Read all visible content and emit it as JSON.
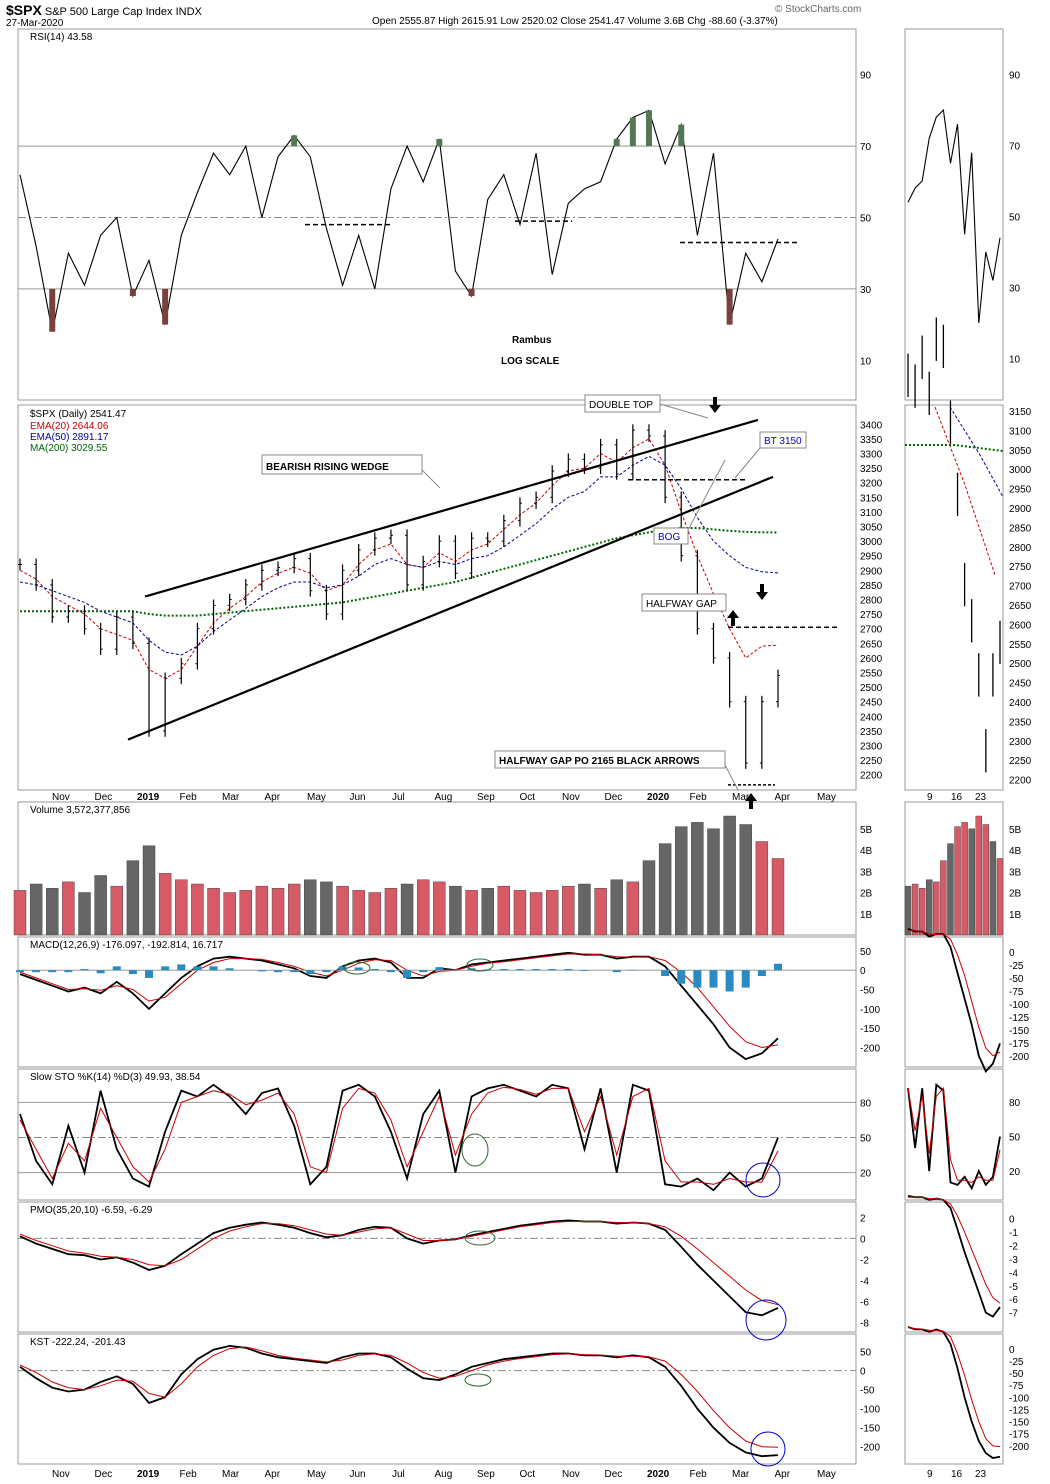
{
  "header": {
    "symbol": "$SPX",
    "name": "S&P 500 Large Cap Index",
    "exchange": "INDX",
    "date": "27-Mar-2020",
    "ohlc": "Open 2555.87  High 2615.91  Low 2520.02  Close 2541.47  Volume 3.6B  Chg -88.60 (-3.37%)",
    "watermark": "© StockCharts.com"
  },
  "chart_data": [
    {
      "type": "line",
      "title": "RSI(14) 43.58",
      "ylim": [
        0,
        100
      ],
      "yticks": [
        90,
        70,
        50,
        30,
        10
      ],
      "annotations": [
        "Rambus",
        "LOG SCALE"
      ],
      "series": [
        {
          "name": "RSI(14)",
          "values": [
            62,
            42,
            18,
            40,
            31,
            45,
            50,
            28,
            38,
            20,
            45,
            57,
            68,
            62,
            70,
            50,
            67,
            73,
            67,
            47,
            31,
            45,
            30,
            58,
            70,
            60,
            72,
            35,
            28,
            55,
            62,
            48,
            68,
            34,
            54,
            58,
            60,
            72,
            78,
            80,
            65,
            76,
            45,
            68,
            20,
            40,
            32,
            44
          ]
        }
      ]
    },
    {
      "type": "line",
      "title": "$SPX (Daily) 2541.47",
      "ylim": [
        2175,
        3425
      ],
      "yticks": [
        3400,
        3350,
        3300,
        3250,
        3200,
        3150,
        3100,
        3050,
        3000,
        2950,
        2900,
        2850,
        2800,
        2750,
        2700,
        2650,
        2600,
        2550,
        2500,
        2450,
        2400,
        2350,
        2300,
        2250,
        2200
      ],
      "xticks": [
        "Nov",
        "Dec",
        "2019",
        "Feb",
        "Mar",
        "Apr",
        "May",
        "Jun",
        "Jul",
        "Aug",
        "Sep",
        "Oct",
        "Nov",
        "Dec",
        "2020",
        "Feb",
        "Mar",
        "Apr",
        "May"
      ],
      "legend": [
        "EMA(20) 2644.06",
        "EMA(50) 2891.17",
        "MA(200) 3029.55"
      ],
      "series": [
        {
          "name": "$SPX (Daily)",
          "values": [
            2920,
            2850,
            2740,
            2760,
            2700,
            2630,
            2740,
            2650,
            2350,
            2530,
            2580,
            2700,
            2780,
            2800,
            2850,
            2900,
            2910,
            2940,
            2830,
            2750,
            2900,
            2970,
            3010,
            3020,
            2850,
            2930,
            3000,
            2890,
            3010,
            3000,
            3070,
            3130,
            3150,
            3240,
            3280,
            3250,
            3330,
            3230,
            3380,
            3360,
            3150,
            2950,
            2700,
            2600,
            2450,
            2240,
            2450,
            2540
          ]
        },
        {
          "name": "EMA(20)",
          "values": [
            2900,
            2870,
            2810,
            2780,
            2750,
            2700,
            2680,
            2660,
            2560,
            2530,
            2560,
            2640,
            2720,
            2770,
            2810,
            2860,
            2890,
            2910,
            2890,
            2830,
            2850,
            2920,
            2970,
            2990,
            2920,
            2910,
            2960,
            2930,
            2970,
            2990,
            3040,
            3090,
            3130,
            3190,
            3240,
            3250,
            3300,
            3270,
            3320,
            3350,
            3260,
            3100,
            2950,
            2820,
            2700,
            2600,
            2640,
            2644
          ]
        },
        {
          "name": "EMA(50)",
          "values": [
            2860,
            2850,
            2830,
            2810,
            2790,
            2760,
            2740,
            2720,
            2660,
            2620,
            2610,
            2640,
            2690,
            2730,
            2770,
            2810,
            2840,
            2860,
            2860,
            2840,
            2850,
            2880,
            2920,
            2940,
            2920,
            2910,
            2930,
            2920,
            2940,
            2950,
            2980,
            3020,
            3060,
            3110,
            3150,
            3170,
            3220,
            3220,
            3260,
            3290,
            3260,
            3180,
            3080,
            3000,
            2950,
            2910,
            2895,
            2891
          ]
        },
        {
          "name": "MA(200)",
          "values": [
            2760,
            2760,
            2760,
            2760,
            2760,
            2760,
            2760,
            2760,
            2750,
            2745,
            2745,
            2745,
            2750,
            2755,
            2760,
            2765,
            2770,
            2775,
            2780,
            2785,
            2790,
            2800,
            2810,
            2820,
            2830,
            2840,
            2850,
            2860,
            2875,
            2890,
            2905,
            2920,
            2935,
            2950,
            2965,
            2980,
            2995,
            3010,
            3020,
            3030,
            3040,
            3045,
            3045,
            3040,
            3035,
            3032,
            3030,
            3029.55
          ]
        }
      ],
      "annotations": [
        "DOUBLE TOP",
        "BEARISH RISING WEDGE",
        "BT 3150",
        "BOG",
        "HALFWAY GAP",
        "HALFWAY GAP PO 2165 BLACK ARROWS"
      ]
    },
    {
      "type": "bar",
      "title": "Volume 3,572,377,856",
      "ylim": [
        0,
        5600000000
      ],
      "yticks": [
        "5B",
        "4B",
        "3B",
        "2B",
        "1B"
      ],
      "series": [
        {
          "name": "Volume",
          "values": [
            2.1,
            2.4,
            2.2,
            2.5,
            2.0,
            2.8,
            2.3,
            3.5,
            4.2,
            2.9,
            2.6,
            2.4,
            2.2,
            2.0,
            2.1,
            2.3,
            2.2,
            2.4,
            2.6,
            2.5,
            2.3,
            2.1,
            2.0,
            2.2,
            2.4,
            2.6,
            2.5,
            2.3,
            2.1,
            2.2,
            2.3,
            2.1,
            2.0,
            2.1,
            2.3,
            2.4,
            2.2,
            2.6,
            2.5,
            3.5,
            4.3,
            5.1,
            5.3,
            5.0,
            5.6,
            5.2,
            4.4,
            3.6
          ]
        }
      ]
    },
    {
      "type": "line",
      "title": "MACD(12,26,9) -176.097, -192.814, 16.717",
      "ylim": [
        -240,
        60
      ],
      "yticks": [
        50,
        0,
        -50,
        -100,
        -150,
        -200
      ],
      "series": [
        {
          "name": "MACD",
          "values": [
            -10,
            -25,
            -40,
            -55,
            -45,
            -60,
            -30,
            -60,
            -100,
            -60,
            -20,
            10,
            30,
            35,
            30,
            25,
            15,
            5,
            -15,
            -20,
            10,
            25,
            30,
            20,
            -20,
            -20,
            5,
            0,
            15,
            20,
            25,
            30,
            35,
            40,
            45,
            40,
            40,
            30,
            35,
            35,
            10,
            -40,
            -90,
            -140,
            -200,
            -230,
            -215,
            -176.097
          ]
        },
        {
          "name": "Signal",
          "values": [
            -5,
            -20,
            -35,
            -50,
            -48,
            -52,
            -40,
            -50,
            -80,
            -70,
            -35,
            0,
            20,
            30,
            30,
            28,
            20,
            10,
            -5,
            -15,
            0,
            18,
            27,
            25,
            0,
            -15,
            -3,
            0,
            10,
            18,
            22,
            27,
            32,
            37,
            42,
            42,
            40,
            35,
            34,
            35,
            25,
            -5,
            -45,
            -95,
            -145,
            -185,
            -200,
            -192.814
          ]
        }
      ]
    },
    {
      "type": "line",
      "title": "Slow STO %K(14) %D(3) 49.93, 38.54",
      "ylim": [
        0,
        100
      ],
      "yticks": [
        80,
        50,
        20
      ],
      "series": [
        {
          "name": "%K",
          "values": [
            70,
            30,
            10,
            60,
            20,
            90,
            40,
            15,
            8,
            55,
            90,
            85,
            95,
            85,
            70,
            88,
            92,
            60,
            10,
            25,
            90,
            95,
            85,
            55,
            15,
            70,
            90,
            20,
            85,
            92,
            95,
            90,
            85,
            95,
            92,
            40,
            92,
            20,
            95,
            90,
            10,
            8,
            15,
            5,
            20,
            8,
            15,
            49.93
          ]
        },
        {
          "name": "%D",
          "values": [
            65,
            40,
            15,
            45,
            30,
            75,
            50,
            25,
            12,
            40,
            80,
            85,
            90,
            87,
            78,
            82,
            88,
            70,
            25,
            20,
            75,
            92,
            88,
            65,
            25,
            55,
            85,
            35,
            70,
            88,
            93,
            91,
            87,
            92,
            92,
            55,
            85,
            35,
            85,
            92,
            30,
            12,
            12,
            10,
            15,
            12,
            12,
            38.54
          ]
        }
      ]
    },
    {
      "type": "line",
      "title": "PMO(35,20,10) -6.59, -6.29",
      "ylim": [
        -8.5,
        2.5
      ],
      "yticks": [
        2,
        0,
        -2,
        -4,
        -6,
        -8
      ],
      "series": [
        {
          "name": "PMO",
          "values": [
            0.2,
            -0.5,
            -1.0,
            -1.5,
            -1.6,
            -2.0,
            -1.8,
            -2.3,
            -3.0,
            -2.6,
            -1.5,
            -0.5,
            0.5,
            1.0,
            1.3,
            1.5,
            1.3,
            1.0,
            0.5,
            0.1,
            0.3,
            0.8,
            1.1,
            1.0,
            0.0,
            -0.5,
            -0.2,
            -0.1,
            0.3,
            0.6,
            0.9,
            1.2,
            1.4,
            1.6,
            1.7,
            1.6,
            1.6,
            1.4,
            1.5,
            1.4,
            0.8,
            -0.8,
            -2.5,
            -4.0,
            -5.5,
            -7.0,
            -7.3,
            -6.59
          ]
        },
        {
          "name": "Signal",
          "values": [
            0.4,
            -0.2,
            -0.7,
            -1.2,
            -1.4,
            -1.7,
            -1.8,
            -2.0,
            -2.5,
            -2.6,
            -2.0,
            -1.0,
            0.0,
            0.7,
            1.1,
            1.4,
            1.4,
            1.2,
            0.8,
            0.4,
            0.3,
            0.6,
            0.9,
            1.0,
            0.4,
            -0.2,
            -0.2,
            -0.1,
            0.2,
            0.5,
            0.8,
            1.1,
            1.3,
            1.5,
            1.6,
            1.6,
            1.6,
            1.5,
            1.5,
            1.4,
            1.1,
            0.2,
            -1.0,
            -2.3,
            -3.6,
            -4.9,
            -5.9,
            -6.29
          ]
        }
      ]
    },
    {
      "type": "line",
      "title": "KST -222.24, -201.43",
      "ylim": [
        -235,
        70
      ],
      "yticks": [
        50,
        0,
        -50,
        -100,
        -150,
        -200
      ],
      "series": [
        {
          "name": "KST",
          "values": [
            10,
            -20,
            -45,
            -55,
            -50,
            -30,
            -15,
            -35,
            -85,
            -70,
            -10,
            30,
            55,
            65,
            60,
            45,
            35,
            30,
            25,
            20,
            35,
            45,
            45,
            35,
            5,
            -20,
            -25,
            -10,
            10,
            20,
            30,
            35,
            40,
            45,
            45,
            40,
            40,
            35,
            40,
            35,
            10,
            -40,
            -100,
            -150,
            -190,
            -215,
            -225,
            -222.24
          ]
        },
        {
          "name": "Signal",
          "values": [
            15,
            -5,
            -30,
            -45,
            -50,
            -40,
            -25,
            -28,
            -60,
            -70,
            -35,
            10,
            40,
            58,
            62,
            52,
            40,
            33,
            28,
            23,
            28,
            40,
            44,
            40,
            20,
            -5,
            -20,
            -15,
            0,
            15,
            25,
            32,
            37,
            42,
            44,
            42,
            41,
            38,
            38,
            36,
            25,
            -10,
            -55,
            -105,
            -150,
            -185,
            -200,
            -201.43
          ]
        }
      ]
    }
  ],
  "right_panel": {
    "xticks": [
      "9",
      "16",
      "23"
    ],
    "rsi_yticks": [
      90,
      70,
      50,
      30,
      10
    ],
    "price_yticks": [
      3150,
      3100,
      3050,
      3000,
      2950,
      2900,
      2850,
      2800,
      2750,
      2700,
      2650,
      2600,
      2550,
      2500,
      2450,
      2400,
      2350,
      2300,
      2250,
      2200
    ],
    "volume_yticks": [
      "5B",
      "4B",
      "3B",
      "2B",
      "1B"
    ],
    "macd_yticks": [
      0,
      -25,
      -50,
      -75,
      -100,
      -125,
      -150,
      -175,
      -200
    ],
    "sto_yticks": [
      80,
      50,
      20
    ],
    "pmo_yticks": [
      0,
      -1,
      -2,
      -3,
      -4,
      -5,
      -6,
      -7
    ],
    "kst_yticks": [
      0,
      -25,
      -50,
      -75,
      -100,
      -125,
      -150,
      -175,
      -200
    ]
  },
  "colors": {
    "up_bar": "#d65b66",
    "down_bar": "#666666",
    "ema20": "#cc0000",
    "ema50": "#000099",
    "ma200": "#006600",
    "histogram": "#2a8bc0",
    "rsi_hi": "#557755",
    "rsi_lo": "#7a4040",
    "circle_blue": "#0000cc",
    "circle_green": "#336633"
  }
}
